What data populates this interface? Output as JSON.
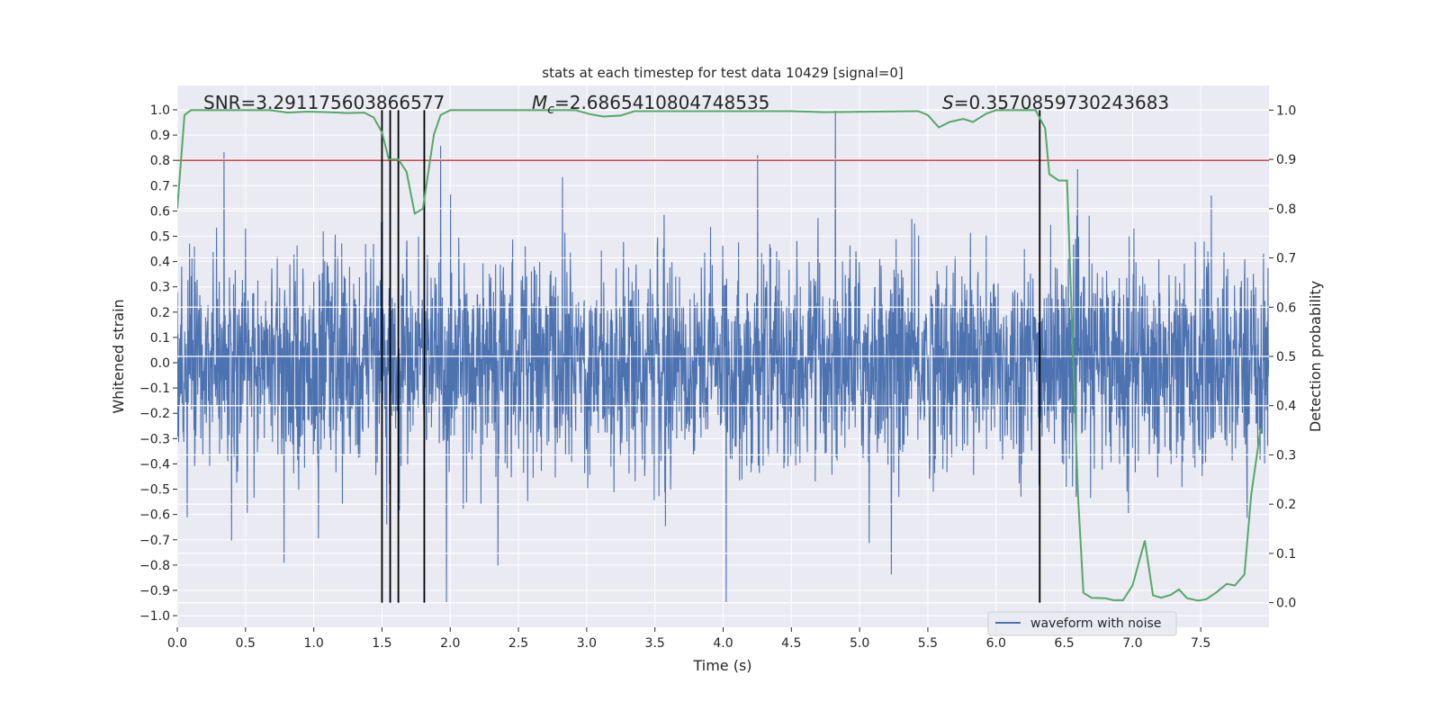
{
  "chart_data": {
    "type": "line",
    "title": "stats at each timestep for test data 10429 [signal=0]",
    "xlabel": "Time (s)",
    "ylabel": "Whitened strain",
    "ylabel_right": "Detection probability",
    "xlim": [
      0.0,
      8.0
    ],
    "ylim": [
      -1.046,
      1.096
    ],
    "ylim_right": [
      -0.05,
      1.05
    ],
    "x_ticks": [
      "0.0",
      "0.5",
      "1.0",
      "1.5",
      "2.0",
      "2.5",
      "3.0",
      "3.5",
      "4.0",
      "4.5",
      "5.0",
      "5.5",
      "6.0",
      "6.5",
      "7.0",
      "7.5"
    ],
    "y_ticks": [
      "1.0",
      "0.9",
      "0.8",
      "0.7",
      "0.6",
      "0.5",
      "0.4",
      "0.3",
      "0.2",
      "0.1",
      "0.0",
      "−0.1",
      "−0.2",
      "−0.3",
      "−0.4",
      "−0.5",
      "−0.6",
      "−0.7",
      "−0.8",
      "−0.9",
      "−1.0"
    ],
    "y_ticks_right": [
      "1.0",
      "0.9",
      "0.8",
      "0.7",
      "0.6",
      "0.5",
      "0.4",
      "0.3",
      "0.2",
      "0.1",
      "0.0"
    ],
    "grid": true,
    "legend": {
      "placement": "lower-right",
      "entries": [
        "waveform with noise"
      ]
    },
    "annotations": {
      "snr": "SNR=3.291175603866577",
      "mc_symbol": "M",
      "mc_sub": "c",
      "mc_value": "=2.6865410804748535",
      "s_symbol": "S",
      "s_value": "=0.3570859730243683"
    },
    "colors": {
      "waveform": "#4c72b0",
      "probability": "#55a868",
      "threshold": "#c44e52",
      "markers": "#000000",
      "background": "#eaeaf2"
    },
    "waveform": {
      "name": "waveform with noise",
      "description_range": [
        -0.95,
        1.0
      ]
    },
    "threshold_strain": 0.8,
    "marker_times": [
      1.5,
      1.56,
      1.62,
      1.81,
      6.32
    ],
    "probability": {
      "t": [
        0,
        0.053,
        0.1,
        0.68,
        0.81,
        0.95,
        1.1,
        1.25,
        1.37,
        1.44,
        1.5,
        1.55,
        1.62,
        1.68,
        1.74,
        1.8,
        1.88,
        1.93,
        2.0,
        2.92,
        3.02,
        3.12,
        3.25,
        3.35,
        4.5,
        4.74,
        5.43,
        5.5,
        5.58,
        5.66,
        5.76,
        5.83,
        5.93,
        6.0,
        6.29,
        6.36,
        6.39,
        6.46,
        6.52,
        6.55,
        6.6,
        6.64,
        6.7,
        6.8,
        6.86,
        6.93,
        7.0,
        7.09,
        7.15,
        7.21,
        7.28,
        7.34,
        7.4,
        7.48,
        7.54,
        7.61,
        7.69,
        7.75,
        7.82,
        7.87,
        7.94
      ],
      "p": [
        0.8,
        0.99,
        1.0,
        1.0,
        0.995,
        0.997,
        0.996,
        0.994,
        0.995,
        0.985,
        0.955,
        0.9,
        0.9,
        0.875,
        0.79,
        0.8,
        0.95,
        0.99,
        1.0,
        1.0,
        0.992,
        0.987,
        0.989,
        0.998,
        0.998,
        0.996,
        0.998,
        0.99,
        0.965,
        0.976,
        0.982,
        0.976,
        0.993,
        1.0,
        1.0,
        0.963,
        0.87,
        0.857,
        0.857,
        0.62,
        0.22,
        0.02,
        0.01,
        0.009,
        0.005,
        0.005,
        0.035,
        0.126,
        0.015,
        0.01,
        0.016,
        0.027,
        0.009,
        0.004,
        0.007,
        0.02,
        0.038,
        0.035,
        0.057,
        0.22,
        0.355
      ]
    }
  }
}
